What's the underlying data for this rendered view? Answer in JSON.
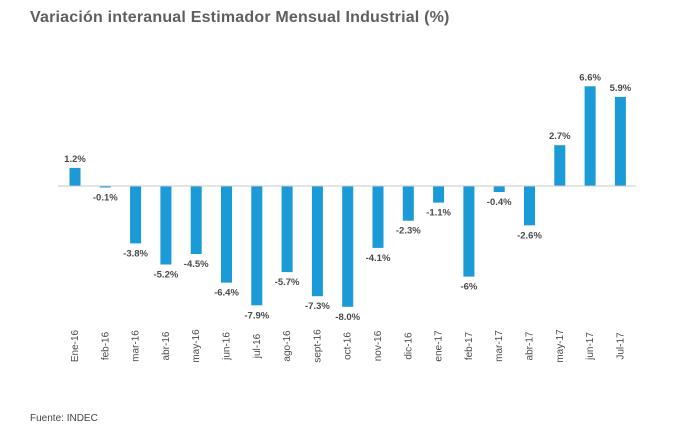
{
  "chart_data": {
    "type": "bar",
    "title": "Variación interanual Estimador Mensual Industrial (%)",
    "categories": [
      "Ene-16",
      "feb-16",
      "mar-16",
      "abr-16",
      "may-16",
      "jun-16",
      "jul-16",
      "ago-16",
      "sept-16",
      "oct-16",
      "nov-16",
      "dic-16",
      "ene-17",
      "feb-17",
      "mar-17",
      "abr-17",
      "may-17",
      "jun-17",
      "Jul-17"
    ],
    "values": [
      1.2,
      -0.1,
      -3.8,
      -5.2,
      -4.5,
      -6.4,
      -7.9,
      -5.7,
      -7.3,
      -8.0,
      -4.1,
      -2.3,
      -1.1,
      -6,
      -0.4,
      -2.6,
      2.7,
      6.6,
      5.9
    ],
    "value_labels": [
      "1.2%",
      "-0.1%",
      "-3.8%",
      "-5.2%",
      "-4.5%",
      "-6.4%",
      "-7.9%",
      "-5.7%",
      "-7.3%",
      "-8.0%",
      "-4.1%",
      "-2.3%",
      "-1.1%",
      "-6%",
      "-0.4%",
      "-2.6%",
      "2.7%",
      "6.6%",
      "5.9%"
    ],
    "xlabel": "",
    "ylabel": "",
    "grid": false,
    "legend": "none",
    "colors": {
      "bar": "#1a9ad6",
      "axis": "#c8c8c8",
      "label": "#4a4a4a",
      "title": "#5f5f5f"
    }
  },
  "source": "Fuente: INDEC"
}
